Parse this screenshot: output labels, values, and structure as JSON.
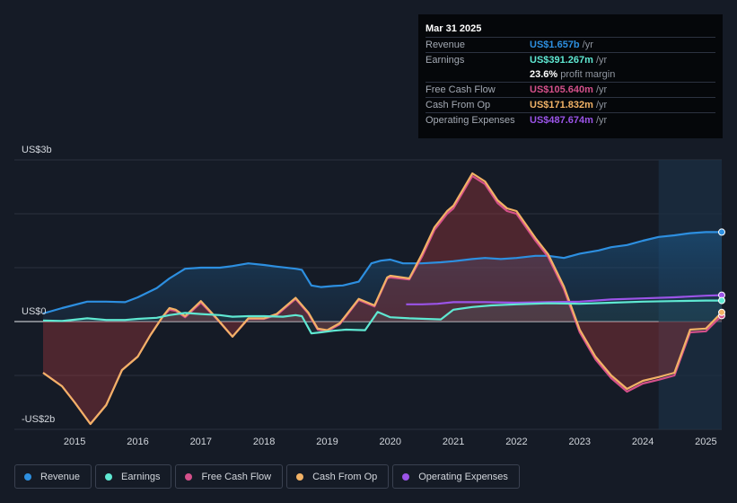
{
  "tooltip": {
    "date": "Mar 31 2025",
    "revenue": {
      "label": "Revenue",
      "value": "US$1.657b",
      "unit": "/yr",
      "color": "#2d8fe0"
    },
    "earnings": {
      "label": "Earnings",
      "value": "US$391.267m",
      "unit": "/yr",
      "color": "#5fe8d2"
    },
    "margin": {
      "value": "23.6%",
      "text": "profit margin"
    },
    "fcf": {
      "label": "Free Cash Flow",
      "value": "US$105.640m",
      "unit": "/yr",
      "color": "#d4508a"
    },
    "cfo": {
      "label": "Cash From Op",
      "value": "US$171.832m",
      "unit": "/yr",
      "color": "#f2b266"
    },
    "opex": {
      "label": "Operating Expenses",
      "value": "US$487.674m",
      "unit": "/yr",
      "color": "#9b54e8"
    }
  },
  "legend": [
    {
      "key": "revenue",
      "label": "Revenue",
      "color": "#2d8fe0"
    },
    {
      "key": "earnings",
      "label": "Earnings",
      "color": "#5fe8d2"
    },
    {
      "key": "fcf",
      "label": "Free Cash Flow",
      "color": "#d4508a"
    },
    {
      "key": "cfo",
      "label": "Cash From Op",
      "color": "#f2b266"
    },
    {
      "key": "opex",
      "label": "Operating Expenses",
      "color": "#9b54e8"
    }
  ],
  "chart_data": {
    "type": "area",
    "title": "",
    "xlabel": "",
    "ylabel": "",
    "ylim": [
      -2,
      3
    ],
    "xlim": [
      2014.5,
      2025.25
    ],
    "y_tick_labels": [
      {
        "value": 3,
        "label": "US$3b"
      },
      {
        "value": 0,
        "label": "US$0"
      },
      {
        "value": -2,
        "label": "-US$2b"
      }
    ],
    "x_ticks": [
      2015,
      2016,
      2017,
      2018,
      2019,
      2020,
      2021,
      2022,
      2023,
      2024,
      2025
    ],
    "forecast_start": 2024.25,
    "series": [
      {
        "name": "Revenue",
        "key": "revenue",
        "color": "#2d8fe0",
        "points": [
          [
            2014.5,
            0.15
          ],
          [
            2014.8,
            0.25
          ],
          [
            2015.2,
            0.37
          ],
          [
            2015.5,
            0.37
          ],
          [
            2015.8,
            0.36
          ],
          [
            2016.0,
            0.45
          ],
          [
            2016.3,
            0.62
          ],
          [
            2016.5,
            0.8
          ],
          [
            2016.75,
            0.98
          ],
          [
            2017.0,
            1.0
          ],
          [
            2017.3,
            1.0
          ],
          [
            2017.5,
            1.03
          ],
          [
            2017.75,
            1.08
          ],
          [
            2018.0,
            1.05
          ],
          [
            2018.2,
            1.02
          ],
          [
            2018.5,
            0.98
          ],
          [
            2018.6,
            0.96
          ],
          [
            2018.75,
            0.67
          ],
          [
            2018.9,
            0.64
          ],
          [
            2019.1,
            0.66
          ],
          [
            2019.25,
            0.67
          ],
          [
            2019.5,
            0.74
          ],
          [
            2019.7,
            1.08
          ],
          [
            2019.85,
            1.13
          ],
          [
            2020.0,
            1.15
          ],
          [
            2020.2,
            1.08
          ],
          [
            2020.5,
            1.08
          ],
          [
            2020.8,
            1.1
          ],
          [
            2021.0,
            1.12
          ],
          [
            2021.3,
            1.16
          ],
          [
            2021.5,
            1.18
          ],
          [
            2021.75,
            1.16
          ],
          [
            2022.0,
            1.18
          ],
          [
            2022.3,
            1.22
          ],
          [
            2022.5,
            1.22
          ],
          [
            2022.75,
            1.18
          ],
          [
            2023.0,
            1.26
          ],
          [
            2023.3,
            1.32
          ],
          [
            2023.5,
            1.38
          ],
          [
            2023.75,
            1.42
          ],
          [
            2024.0,
            1.5
          ],
          [
            2024.25,
            1.57
          ],
          [
            2024.5,
            1.6
          ],
          [
            2024.75,
            1.64
          ],
          [
            2025.0,
            1.66
          ],
          [
            2025.25,
            1.66
          ]
        ]
      },
      {
        "name": "Earnings",
        "key": "earnings",
        "color": "#5fe8d2",
        "points": [
          [
            2014.5,
            0.02
          ],
          [
            2014.8,
            0.01
          ],
          [
            2015.2,
            0.06
          ],
          [
            2015.5,
            0.03
          ],
          [
            2015.8,
            0.03
          ],
          [
            2016.0,
            0.05
          ],
          [
            2016.3,
            0.07
          ],
          [
            2016.5,
            0.12
          ],
          [
            2016.75,
            0.16
          ],
          [
            2017.0,
            0.14
          ],
          [
            2017.3,
            0.12
          ],
          [
            2017.5,
            0.09
          ],
          [
            2017.75,
            0.1
          ],
          [
            2018.0,
            0.1
          ],
          [
            2018.3,
            0.09
          ],
          [
            2018.5,
            0.12
          ],
          [
            2018.6,
            0.1
          ],
          [
            2018.75,
            -0.22
          ],
          [
            2018.9,
            -0.2
          ],
          [
            2019.1,
            -0.17
          ],
          [
            2019.3,
            -0.15
          ],
          [
            2019.6,
            -0.16
          ],
          [
            2019.8,
            0.18
          ],
          [
            2020.0,
            0.08
          ],
          [
            2020.3,
            0.06
          ],
          [
            2020.8,
            0.04
          ],
          [
            2021.0,
            0.22
          ],
          [
            2021.3,
            0.27
          ],
          [
            2021.6,
            0.3
          ],
          [
            2022.0,
            0.32
          ],
          [
            2022.5,
            0.34
          ],
          [
            2023.0,
            0.33
          ],
          [
            2023.5,
            0.35
          ],
          [
            2024.0,
            0.37
          ],
          [
            2024.5,
            0.38
          ],
          [
            2025.0,
            0.39
          ],
          [
            2025.25,
            0.39
          ]
        ]
      },
      {
        "name": "Free Cash Flow",
        "key": "fcf",
        "color": "#d4508a",
        "points": [
          [
            2014.5,
            -0.95
          ],
          [
            2014.8,
            -1.2
          ],
          [
            2015.0,
            -1.5
          ],
          [
            2015.25,
            -1.9
          ],
          [
            2015.5,
            -1.55
          ],
          [
            2015.75,
            -0.9
          ],
          [
            2016.0,
            -0.65
          ],
          [
            2016.2,
            -0.25
          ],
          [
            2016.4,
            0.1
          ],
          [
            2016.5,
            0.22
          ],
          [
            2016.6,
            0.2
          ],
          [
            2016.75,
            0.08
          ],
          [
            2017.0,
            0.35
          ],
          [
            2017.25,
            0.05
          ],
          [
            2017.5,
            -0.28
          ],
          [
            2017.75,
            0.05
          ],
          [
            2018.0,
            0.05
          ],
          [
            2018.2,
            0.12
          ],
          [
            2018.5,
            0.42
          ],
          [
            2018.7,
            0.15
          ],
          [
            2018.85,
            -0.15
          ],
          [
            2019.0,
            -0.18
          ],
          [
            2019.2,
            -0.05
          ],
          [
            2019.5,
            0.4
          ],
          [
            2019.75,
            0.28
          ],
          [
            2019.95,
            0.8
          ],
          [
            2020.0,
            0.82
          ],
          [
            2020.3,
            0.78
          ],
          [
            2020.5,
            1.2
          ],
          [
            2020.7,
            1.7
          ],
          [
            2020.9,
            2.0
          ],
          [
            2021.0,
            2.1
          ],
          [
            2021.15,
            2.4
          ],
          [
            2021.3,
            2.7
          ],
          [
            2021.5,
            2.55
          ],
          [
            2021.7,
            2.2
          ],
          [
            2021.85,
            2.05
          ],
          [
            2022.0,
            2.0
          ],
          [
            2022.3,
            1.5
          ],
          [
            2022.5,
            1.2
          ],
          [
            2022.75,
            0.6
          ],
          [
            2023.0,
            -0.2
          ],
          [
            2023.25,
            -0.7
          ],
          [
            2023.5,
            -1.05
          ],
          [
            2023.75,
            -1.3
          ],
          [
            2024.0,
            -1.15
          ],
          [
            2024.25,
            -1.08
          ],
          [
            2024.5,
            -1.0
          ],
          [
            2024.75,
            -0.2
          ],
          [
            2025.0,
            -0.18
          ],
          [
            2025.25,
            0.11
          ]
        ]
      },
      {
        "name": "Cash From Op",
        "key": "cfo",
        "color": "#f2b266",
        "points": [
          [
            2014.5,
            -0.95
          ],
          [
            2014.8,
            -1.2
          ],
          [
            2015.0,
            -1.5
          ],
          [
            2015.25,
            -1.9
          ],
          [
            2015.5,
            -1.55
          ],
          [
            2015.75,
            -0.9
          ],
          [
            2016.0,
            -0.65
          ],
          [
            2016.2,
            -0.25
          ],
          [
            2016.4,
            0.1
          ],
          [
            2016.5,
            0.25
          ],
          [
            2016.6,
            0.22
          ],
          [
            2016.75,
            0.1
          ],
          [
            2017.0,
            0.38
          ],
          [
            2017.25,
            0.06
          ],
          [
            2017.5,
            -0.28
          ],
          [
            2017.75,
            0.06
          ],
          [
            2018.0,
            0.06
          ],
          [
            2018.2,
            0.14
          ],
          [
            2018.5,
            0.44
          ],
          [
            2018.7,
            0.17
          ],
          [
            2018.85,
            -0.13
          ],
          [
            2019.0,
            -0.16
          ],
          [
            2019.2,
            -0.03
          ],
          [
            2019.5,
            0.42
          ],
          [
            2019.75,
            0.3
          ],
          [
            2019.95,
            0.82
          ],
          [
            2020.0,
            0.85
          ],
          [
            2020.3,
            0.8
          ],
          [
            2020.5,
            1.25
          ],
          [
            2020.7,
            1.75
          ],
          [
            2020.9,
            2.05
          ],
          [
            2021.0,
            2.15
          ],
          [
            2021.15,
            2.45
          ],
          [
            2021.3,
            2.75
          ],
          [
            2021.5,
            2.6
          ],
          [
            2021.7,
            2.25
          ],
          [
            2021.85,
            2.1
          ],
          [
            2022.0,
            2.05
          ],
          [
            2022.3,
            1.55
          ],
          [
            2022.5,
            1.25
          ],
          [
            2022.75,
            0.65
          ],
          [
            2023.0,
            -0.15
          ],
          [
            2023.25,
            -0.65
          ],
          [
            2023.5,
            -1.0
          ],
          [
            2023.75,
            -1.25
          ],
          [
            2024.0,
            -1.1
          ],
          [
            2024.25,
            -1.03
          ],
          [
            2024.5,
            -0.95
          ],
          [
            2024.75,
            -0.15
          ],
          [
            2025.0,
            -0.13
          ],
          [
            2025.25,
            0.17
          ]
        ]
      },
      {
        "name": "Operating Expenses",
        "key": "opex",
        "color": "#9b54e8",
        "points": [
          [
            2020.25,
            0.32
          ],
          [
            2020.5,
            0.32
          ],
          [
            2020.75,
            0.33
          ],
          [
            2021.0,
            0.36
          ],
          [
            2021.5,
            0.36
          ],
          [
            2022.0,
            0.35
          ],
          [
            2022.5,
            0.36
          ],
          [
            2023.0,
            0.37
          ],
          [
            2023.5,
            0.41
          ],
          [
            2024.0,
            0.43
          ],
          [
            2024.5,
            0.45
          ],
          [
            2025.0,
            0.48
          ],
          [
            2025.25,
            0.49
          ]
        ]
      }
    ]
  }
}
